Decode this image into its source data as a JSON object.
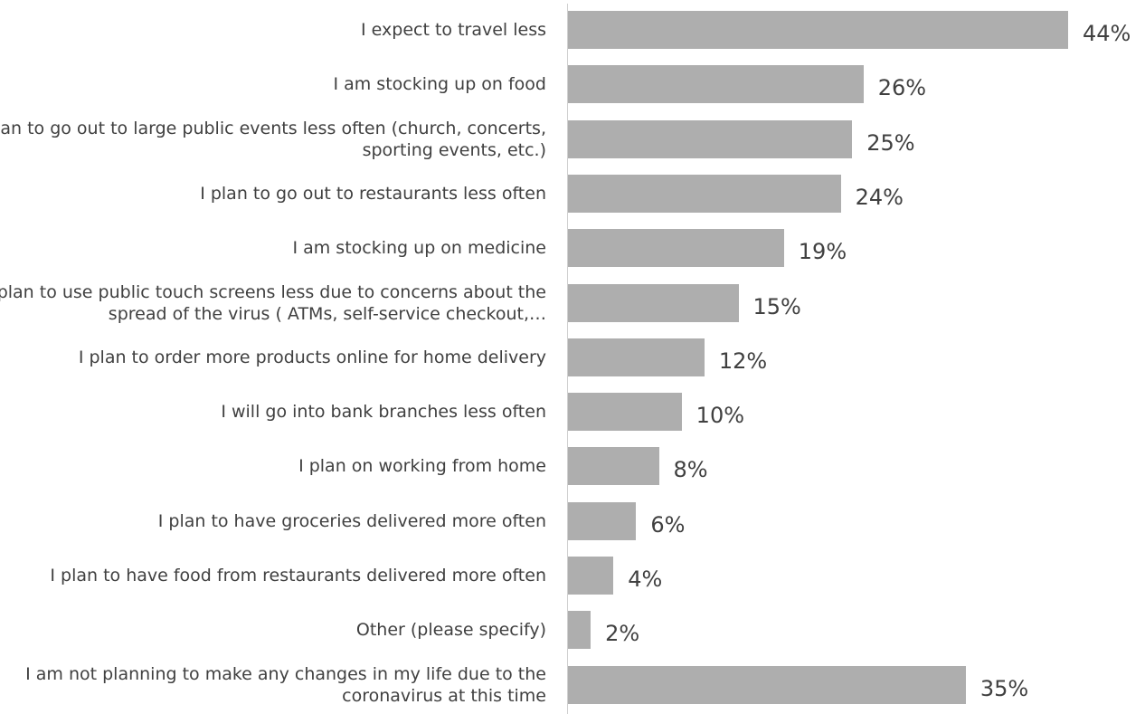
{
  "chart_data": {
    "type": "bar",
    "orientation": "horizontal",
    "title": "",
    "xlabel": "",
    "ylabel": "",
    "categories": [
      "I expect to travel less",
      "I am stocking up on food",
      "I plan to go out to large public events less often (church, concerts, sporting events, etc.)",
      "I plan to go out to restaurants less often",
      "I am stocking up on medicine",
      "I plan to use public touch screens less due to concerns about the spread of the virus ( ATMs, self-service checkout,…",
      "I plan to order more products online for home delivery",
      "I will go into bank branches less often",
      "I plan on working from home",
      "I plan to have groceries delivered more often",
      "I plan to have food from restaurants delivered more often",
      "Other (please specify)",
      "I am not planning to make any changes in my life due to the coronavirus at this time"
    ],
    "values": [
      44,
      26,
      25,
      24,
      19,
      15,
      12,
      10,
      8,
      6,
      4,
      2,
      35
    ],
    "value_labels": [
      "44%",
      "26%",
      "25%",
      "24%",
      "19%",
      "15%",
      "12%",
      "10%",
      "8%",
      "6%",
      "4%",
      "2%",
      "35%"
    ],
    "xlim": [
      0,
      44
    ],
    "grid": false,
    "legend": "none",
    "bar_color": "#aeaeae",
    "text_color": "#404040"
  }
}
